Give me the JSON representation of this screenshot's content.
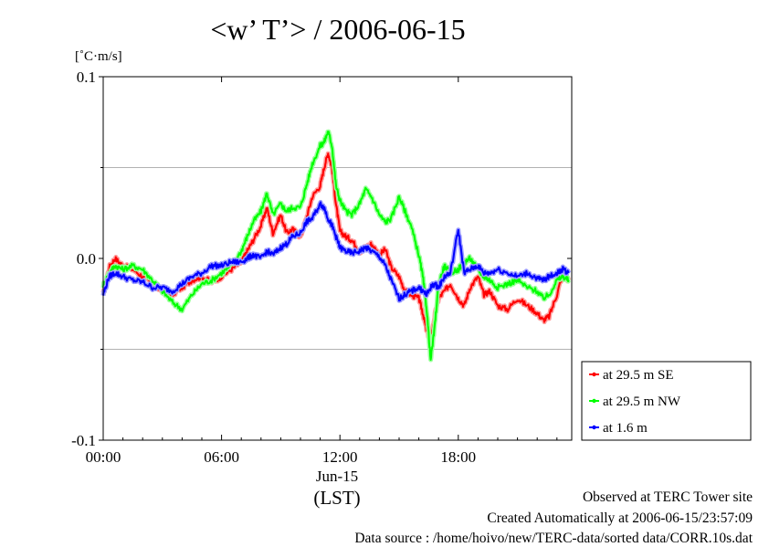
{
  "chart_data": {
    "type": "line",
    "title": "<w’ T’> / 2006-06-15",
    "ylabel": "[˚C·m/s]",
    "xlabel": "(LST)",
    "date_label": "Jun-15",
    "ylim": [
      -0.1,
      0.1
    ],
    "xlim_hours": [
      0,
      23.75
    ],
    "y_ticks": [
      {
        "value": 0.1,
        "label": "0.1"
      },
      {
        "value": 0.0,
        "label": "0.0"
      },
      {
        "value": -0.1,
        "label": "-0.1"
      }
    ],
    "y_gridlines": [
      0.05,
      -0.05
    ],
    "x_ticks": [
      {
        "value": 0,
        "label": "00:00"
      },
      {
        "value": 6,
        "label": "06:00"
      },
      {
        "value": 12,
        "label": "12:00"
      },
      {
        "value": 18,
        "label": "18:00"
      }
    ],
    "legend_position": "right-bottom",
    "series": [
      {
        "name": "at 29.5 m SE",
        "color": "#ff0000",
        "x": [
          0,
          0.3,
          0.6,
          1.0,
          1.5,
          2.0,
          2.5,
          3.0,
          3.5,
          4.0,
          4.5,
          5.0,
          5.5,
          6.0,
          6.5,
          7.0,
          7.3,
          7.6,
          8.0,
          8.3,
          8.6,
          9.0,
          9.3,
          9.6,
          10.0,
          10.3,
          10.6,
          11.0,
          11.2,
          11.4,
          11.6,
          11.8,
          12.0,
          12.3,
          12.6,
          13.0,
          13.3,
          13.6,
          14.0,
          14.3,
          14.6,
          15.0,
          15.3,
          15.6,
          16.0,
          16.2,
          16.4,
          16.6,
          16.8,
          17.0,
          17.3,
          17.6,
          18.0,
          18.3,
          18.6,
          19.0,
          19.3,
          19.6,
          20.0,
          20.5,
          21.0,
          21.5,
          22.0,
          22.3,
          22.6,
          23.0,
          23.3,
          23.6
        ],
        "values": [
          -0.02,
          -0.005,
          0.0,
          -0.004,
          -0.006,
          -0.01,
          -0.014,
          -0.018,
          -0.02,
          -0.016,
          -0.012,
          -0.01,
          -0.013,
          -0.01,
          -0.006,
          -0.002,
          0.004,
          0.01,
          0.018,
          0.028,
          0.014,
          0.024,
          0.014,
          0.016,
          0.012,
          0.022,
          0.034,
          0.04,
          0.05,
          0.058,
          0.05,
          0.03,
          0.015,
          0.012,
          0.01,
          0.004,
          0.006,
          0.008,
          0.002,
          0.005,
          -0.005,
          -0.01,
          -0.018,
          -0.02,
          -0.022,
          -0.03,
          -0.04,
          -0.045,
          -0.032,
          -0.022,
          -0.018,
          -0.014,
          -0.022,
          -0.026,
          -0.016,
          -0.01,
          -0.02,
          -0.018,
          -0.026,
          -0.028,
          -0.022,
          -0.026,
          -0.03,
          -0.034,
          -0.032,
          -0.02,
          -0.008,
          -0.012
        ]
      },
      {
        "name": "at 29.5 m NW",
        "color": "#00ff00",
        "x": [
          0,
          0.3,
          0.6,
          1.0,
          1.5,
          2.0,
          2.5,
          3.0,
          3.5,
          4.0,
          4.5,
          5.0,
          5.5,
          6.0,
          6.5,
          7.0,
          7.3,
          7.6,
          8.0,
          8.3,
          8.6,
          9.0,
          9.3,
          9.6,
          10.0,
          10.3,
          10.6,
          11.0,
          11.2,
          11.4,
          11.6,
          11.8,
          12.0,
          12.3,
          12.6,
          13.0,
          13.3,
          13.6,
          14.0,
          14.3,
          14.6,
          15.0,
          15.3,
          15.6,
          16.0,
          16.2,
          16.4,
          16.6,
          16.8,
          17.0,
          17.3,
          17.6,
          18.0,
          18.3,
          18.6,
          19.0,
          19.3,
          19.6,
          20.0,
          20.5,
          21.0,
          21.5,
          22.0,
          22.3,
          22.6,
          23.0,
          23.3,
          23.6
        ],
        "values": [
          -0.015,
          -0.008,
          -0.004,
          -0.006,
          -0.004,
          -0.006,
          -0.012,
          -0.018,
          -0.024,
          -0.028,
          -0.02,
          -0.014,
          -0.012,
          -0.008,
          -0.004,
          0.004,
          0.012,
          0.02,
          0.026,
          0.036,
          0.024,
          0.03,
          0.026,
          0.028,
          0.028,
          0.04,
          0.052,
          0.062,
          0.064,
          0.07,
          0.062,
          0.04,
          0.032,
          0.026,
          0.024,
          0.03,
          0.038,
          0.034,
          0.024,
          0.02,
          0.022,
          0.034,
          0.026,
          0.018,
          0.002,
          -0.01,
          -0.028,
          -0.056,
          -0.038,
          -0.014,
          -0.004,
          -0.008,
          -0.006,
          -0.002,
          0.0,
          -0.006,
          -0.01,
          -0.012,
          -0.016,
          -0.014,
          -0.012,
          -0.016,
          -0.018,
          -0.022,
          -0.02,
          -0.012,
          -0.01,
          -0.012
        ]
      },
      {
        "name": "at 1.6 m",
        "color": "#0000ff",
        "x": [
          0,
          0.3,
          0.6,
          1.0,
          1.5,
          2.0,
          2.5,
          3.0,
          3.5,
          4.0,
          4.5,
          5.0,
          5.5,
          6.0,
          6.5,
          7.0,
          7.3,
          7.6,
          8.0,
          8.3,
          8.6,
          9.0,
          9.3,
          9.6,
          10.0,
          10.3,
          10.6,
          11.0,
          11.2,
          11.4,
          11.6,
          11.8,
          12.0,
          12.3,
          12.6,
          13.0,
          13.3,
          13.6,
          14.0,
          14.3,
          14.6,
          15.0,
          15.3,
          15.6,
          16.0,
          16.2,
          16.4,
          16.6,
          16.8,
          17.0,
          17.3,
          17.6,
          18.0,
          18.3,
          18.6,
          19.0,
          19.3,
          19.6,
          20.0,
          20.5,
          21.0,
          21.5,
          22.0,
          22.3,
          22.6,
          23.0,
          23.3,
          23.6
        ],
        "values": [
          -0.02,
          -0.01,
          -0.008,
          -0.01,
          -0.012,
          -0.013,
          -0.016,
          -0.016,
          -0.018,
          -0.014,
          -0.01,
          -0.008,
          -0.004,
          -0.004,
          -0.002,
          -0.002,
          0.0,
          0.002,
          0.0,
          0.004,
          0.002,
          0.006,
          0.008,
          0.012,
          0.014,
          0.02,
          0.022,
          0.03,
          0.028,
          0.022,
          0.018,
          0.012,
          0.006,
          0.004,
          0.003,
          0.004,
          0.006,
          0.004,
          0.001,
          -0.004,
          -0.012,
          -0.022,
          -0.02,
          -0.018,
          -0.016,
          -0.018,
          -0.02,
          -0.016,
          -0.014,
          -0.016,
          -0.01,
          -0.008,
          0.016,
          -0.008,
          -0.006,
          -0.004,
          -0.008,
          -0.008,
          -0.006,
          -0.008,
          -0.01,
          -0.008,
          -0.011,
          -0.012,
          -0.01,
          -0.008,
          -0.006,
          -0.008
        ]
      }
    ]
  },
  "footer": {
    "site": "Observed at TERC Tower site",
    "created": "Created Automatically at 2006-06-15/23:57:09",
    "source": "Data source : /home/hoivo/new/TERC-data/sorted  data/CORR.10s.dat"
  }
}
